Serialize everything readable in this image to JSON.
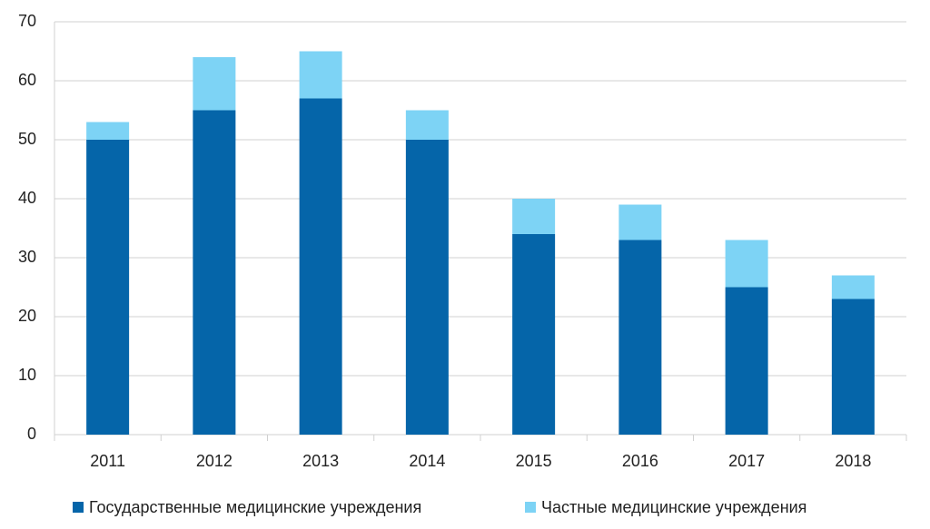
{
  "chart_data": {
    "type": "stacked_bar",
    "categories": [
      "2011",
      "2012",
      "2013",
      "2014",
      "2015",
      "2016",
      "2017",
      "2018"
    ],
    "series": [
      {
        "name": "Государственные медицинские учреждения",
        "color": "#0565a9",
        "values": [
          50,
          55,
          57,
          50,
          34,
          33,
          25,
          23
        ]
      },
      {
        "name": "Частные медицинские учреждения",
        "color": "#7dd3f5",
        "values": [
          3,
          9,
          8,
          5,
          6,
          6,
          8,
          4
        ]
      }
    ],
    "ylim": [
      0,
      70
    ],
    "yticks": [
      0,
      10,
      20,
      30,
      40,
      50,
      60,
      70
    ],
    "grid": true,
    "legend": "bottom"
  }
}
